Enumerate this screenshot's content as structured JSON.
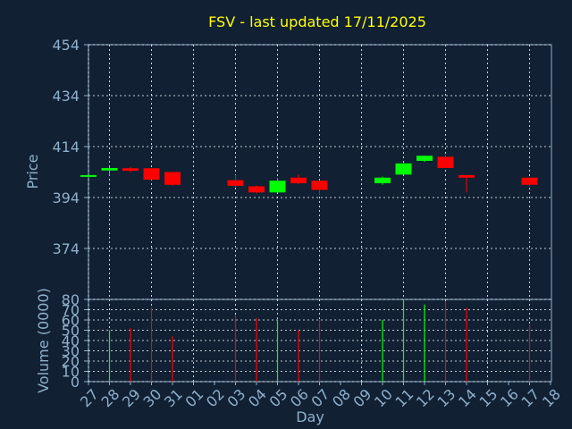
{
  "title": "FSV - last updated 17/11/2025",
  "colors": {
    "background": "#112033",
    "axis": "#8fb0cc",
    "grid": "#ffffff",
    "title": "#ffff00",
    "up": "#00ff00",
    "down": "#ff0000"
  },
  "chart_data": [
    {
      "type": "candlestick",
      "ylabel": "Price",
      "ylim": [
        354,
        454
      ],
      "yticks": [
        "374",
        "394",
        "414",
        "434",
        "454"
      ],
      "grid": true,
      "x_ticks": [
        "27",
        "28",
        "29",
        "30",
        "31",
        "01",
        "02",
        "03",
        "04",
        "05",
        "06",
        "07",
        "08",
        "09",
        "10",
        "11",
        "12",
        "13",
        "14",
        "15",
        "16",
        "17",
        "18"
      ],
      "candles": [
        {
          "day": "27",
          "open": 402.8,
          "close": 402.8,
          "high": 402.8,
          "low": 402.8
        },
        {
          "day": "28",
          "open": 404.6,
          "close": 405.6,
          "high": 406.0,
          "low": 402.6
        },
        {
          "day": "29",
          "open": 405.5,
          "close": 404.5,
          "high": 406.0,
          "low": 404.0
        },
        {
          "day": "30",
          "open": 405.5,
          "close": 401.0,
          "high": 405.5,
          "low": 401.0
        },
        {
          "day": "31",
          "open": 404.0,
          "close": 399.0,
          "high": 404.0,
          "low": 398.5
        },
        {
          "day": "03",
          "open": 400.8,
          "close": 398.6,
          "high": 402.8,
          "low": 398.0
        },
        {
          "day": "04",
          "open": 398.4,
          "close": 396.0,
          "high": 398.8,
          "low": 395.6
        },
        {
          "day": "05",
          "open": 396.0,
          "close": 400.6,
          "high": 401.6,
          "low": 396.0
        },
        {
          "day": "06",
          "open": 401.8,
          "close": 399.6,
          "high": 403.0,
          "low": 399.2
        },
        {
          "day": "07",
          "open": 400.6,
          "close": 397.0,
          "high": 400.8,
          "low": 395.0
        },
        {
          "day": "10",
          "open": 399.6,
          "close": 401.8,
          "high": 402.2,
          "low": 399.0
        },
        {
          "day": "11",
          "open": 403.0,
          "close": 407.4,
          "high": 407.4,
          "low": 403.0
        },
        {
          "day": "12",
          "open": 408.4,
          "close": 410.4,
          "high": 410.4,
          "low": 408.0
        },
        {
          "day": "13",
          "open": 410.0,
          "close": 405.6,
          "high": 410.8,
          "low": 405.6
        },
        {
          "day": "14",
          "open": 402.8,
          "close": 401.8,
          "high": 402.8,
          "low": 396.0
        },
        {
          "day": "17",
          "open": 401.8,
          "close": 399.0,
          "high": 401.8,
          "low": 398.6
        }
      ]
    },
    {
      "type": "bar",
      "xlabel": "Day",
      "ylabel": "Volume (0000)",
      "ylim": [
        0,
        80
      ],
      "yticks": [
        "0",
        "10",
        "20",
        "30",
        "40",
        "50",
        "60",
        "70",
        "80"
      ],
      "bars": [
        {
          "day": "28",
          "value": 50,
          "color": "#00ff00"
        },
        {
          "day": "29",
          "value": 52,
          "color": "#ff0000"
        },
        {
          "day": "30",
          "value": 72,
          "color": "#ff0000"
        },
        {
          "day": "31",
          "value": 44,
          "color": "#ff0000"
        },
        {
          "day": "03",
          "value": 65,
          "color": "#ff0000"
        },
        {
          "day": "04",
          "value": 62,
          "color": "#ff0000"
        },
        {
          "day": "05",
          "value": 60,
          "color": "#00ff00"
        },
        {
          "day": "06",
          "value": 50,
          "color": "#ff0000"
        },
        {
          "day": "07",
          "value": 60,
          "color": "#ff0000"
        },
        {
          "day": "10",
          "value": 60,
          "color": "#00ff00"
        },
        {
          "day": "11",
          "value": 80,
          "color": "#00ff00"
        },
        {
          "day": "12",
          "value": 75,
          "color": "#00ff00"
        },
        {
          "day": "13",
          "value": 78,
          "color": "#ff0000"
        },
        {
          "day": "14",
          "value": 72,
          "color": "#ff0000"
        },
        {
          "day": "17",
          "value": 55,
          "color": "#ff0000"
        }
      ]
    }
  ]
}
